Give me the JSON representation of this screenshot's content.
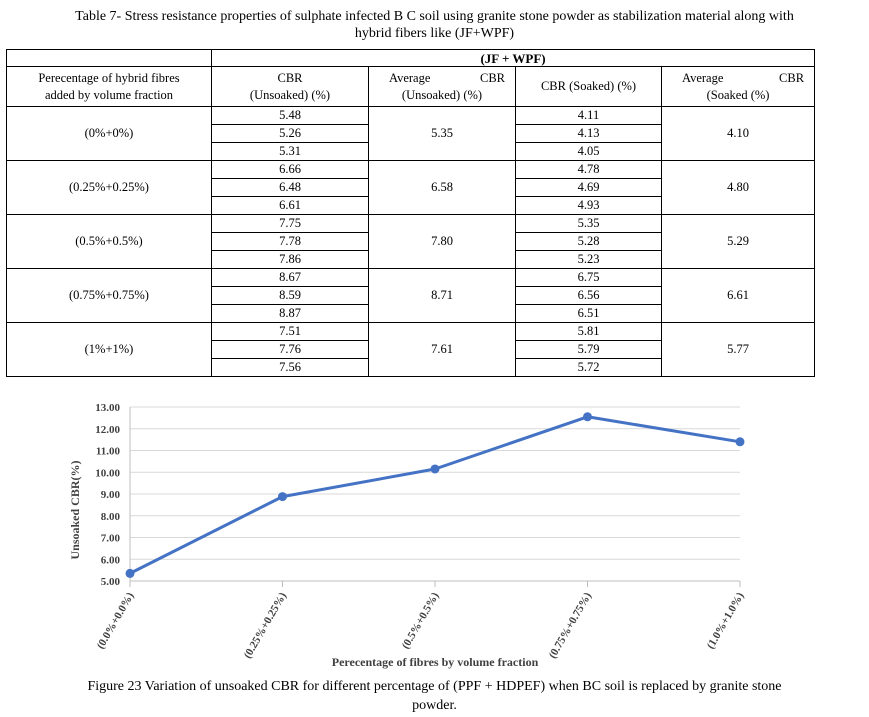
{
  "table": {
    "caption_line1": "Table 7- Stress resistance properties of sulphate infected B C soil using granite stone powder as stabilization material along with",
    "caption_line2": "hybrid fibers like (JF+WPF)",
    "group_header": "(JF + WPF)",
    "headers": {
      "col1_line1": "Perecentage of hybrid fibres",
      "col1_line2": "added by volume fraction",
      "col2_line1": "CBR",
      "col2_line2": "(Unsoaked) (%)",
      "col3_left": "Average",
      "col3_right": "CBR",
      "col3_line2": "(Unsoaked) (%)",
      "col4": "CBR (Soaked) (%)",
      "col5_left": "Average",
      "col5_right": "CBR",
      "col5_line2": "(Soaked (%)"
    },
    "rows": [
      {
        "fraction": "(0%+0%)",
        "cbr_unsoaked": [
          "5.48",
          "5.26",
          "5.31"
        ],
        "avg_unsoaked": "5.35",
        "cbr_soaked": [
          "4.11",
          "4.13",
          "4.05"
        ],
        "avg_soaked": "4.10"
      },
      {
        "fraction": "(0.25%+0.25%)",
        "cbr_unsoaked": [
          "6.66",
          "6.48",
          "6.61"
        ],
        "avg_unsoaked": "6.58",
        "cbr_soaked": [
          "4.78",
          "4.69",
          "4.93"
        ],
        "avg_soaked": "4.80"
      },
      {
        "fraction": "(0.5%+0.5%)",
        "cbr_unsoaked": [
          "7.75",
          "7.78",
          "7.86"
        ],
        "avg_unsoaked": "7.80",
        "cbr_soaked": [
          "5.35",
          "5.28",
          "5.23"
        ],
        "avg_soaked": "5.29"
      },
      {
        "fraction": "(0.75%+0.75%)",
        "cbr_unsoaked": [
          "8.67",
          "8.59",
          "8.87"
        ],
        "avg_unsoaked": "8.71",
        "cbr_soaked": [
          "6.75",
          "6.56",
          "6.51"
        ],
        "avg_soaked": "6.61"
      },
      {
        "fraction": "(1%+1%)",
        "cbr_unsoaked": [
          "7.51",
          "7.76",
          "7.56"
        ],
        "avg_unsoaked": "7.61",
        "cbr_soaked": [
          "5.81",
          "5.79",
          "5.72"
        ],
        "avg_soaked": "5.77"
      }
    ]
  },
  "chart_data": {
    "type": "line",
    "categories": [
      "(0.0%+0.0%)",
      "(0.25%+0.25%)",
      "(0.5%+0.5%)",
      "(0.75%+0.75%)",
      "(1.0%+1.0%)"
    ],
    "series": [
      {
        "values": [
          5.35,
          8.88,
          10.15,
          12.55,
          11.4
        ],
        "color": "#4472c4"
      }
    ],
    "ylabel": "Unsoaked CBR(%)",
    "xlabel": "Perecentage of fibres by volume fraction",
    "ylim": [
      5.0,
      13.0
    ],
    "yticks": [
      "13.00",
      "12.00",
      "11.00",
      "10.00",
      "9.00",
      "8.00",
      "7.00",
      "6.00",
      "5.00"
    ],
    "grid": "horizontal",
    "axis_color": "#bfbfbf",
    "grid_color": "#d9d9d9"
  },
  "figure_caption": {
    "line1": "Figure 23 Variation of unsoaked CBR for different percentage of (PPF + HDPEF) when BC soil is replaced by granite stone",
    "line2": "powder."
  }
}
